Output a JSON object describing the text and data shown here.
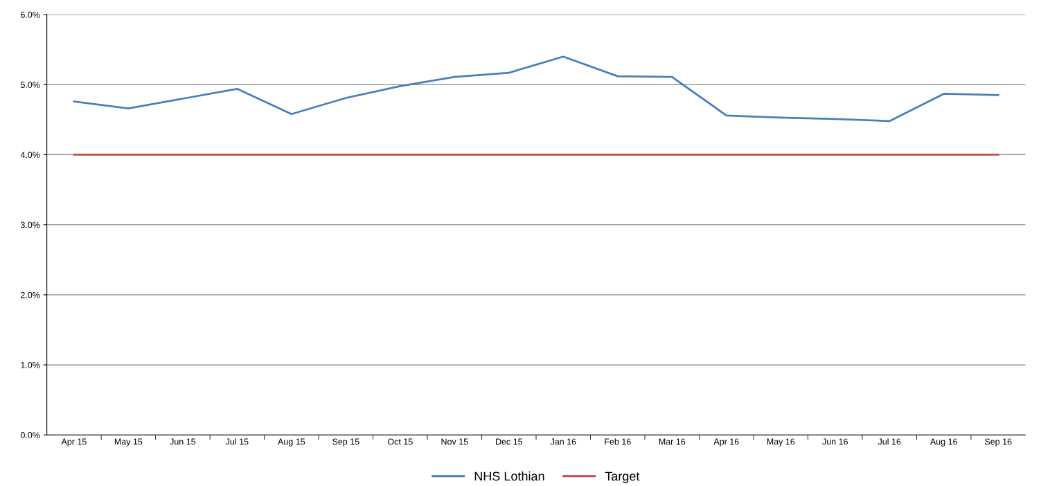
{
  "chart_data": {
    "type": "line",
    "categories": [
      "Apr 15",
      "May 15",
      "Jun 15",
      "Jul 15",
      "Aug 15",
      "Sep 15",
      "Oct 15",
      "Nov 15",
      "Dec 15",
      "Jan 16",
      "Feb 16",
      "Mar 16",
      "Apr 16",
      "May 16",
      "Jun 16",
      "Jul 16",
      "Aug 16",
      "Sep 16"
    ],
    "series": [
      {
        "name": "NHS Lothian",
        "color": "#4a7ebb",
        "values": [
          4.76,
          4.66,
          4.8,
          4.94,
          4.58,
          4.81,
          4.98,
          5.11,
          5.17,
          5.4,
          5.12,
          5.11,
          4.56,
          4.53,
          4.51,
          4.48,
          4.87,
          4.85
        ]
      },
      {
        "name": "Target",
        "color": "#be4b48",
        "values": [
          4.0,
          4.0,
          4.0,
          4.0,
          4.0,
          4.0,
          4.0,
          4.0,
          4.0,
          4.0,
          4.0,
          4.0,
          4.0,
          4.0,
          4.0,
          4.0,
          4.0,
          4.0
        ]
      }
    ],
    "ylim": [
      0,
      6
    ],
    "yticks": [
      {
        "value": 0,
        "label": "0.0%"
      },
      {
        "value": 1,
        "label": "1.0%"
      },
      {
        "value": 2,
        "label": "2.0%"
      },
      {
        "value": 3,
        "label": "3.0%"
      },
      {
        "value": 4,
        "label": "4.0%"
      },
      {
        "value": 5,
        "label": "5.0%"
      },
      {
        "value": 6,
        "label": "6.0%"
      }
    ],
    "grid": "y",
    "legend": "bottom",
    "marker": "none",
    "line_style": "solid"
  }
}
